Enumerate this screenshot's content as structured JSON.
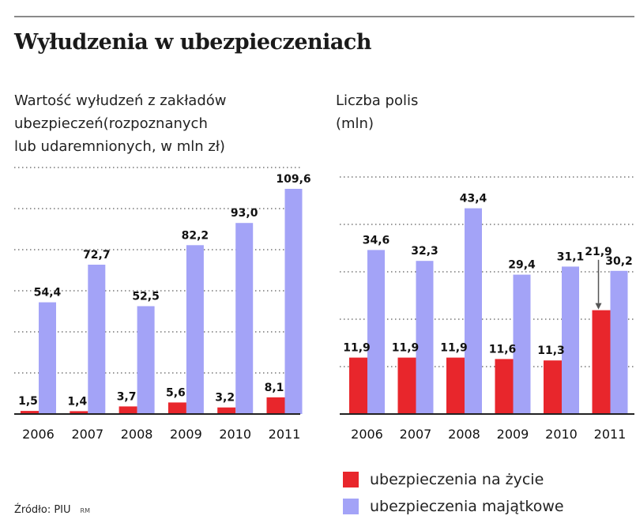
{
  "title": "Wyłudzenia w ubezpieczeniach",
  "colors": {
    "life": "#e8262c",
    "property": "#a3a3f7",
    "grid": "#777777",
    "baseline": "#222222"
  },
  "source": "Źródło: PIU",
  "source_mark": "RM",
  "legend": [
    {
      "label": "ubezpieczenia na życie",
      "color": "#e8262c"
    },
    {
      "label": "ubezpieczenia majątkowe",
      "color": "#a3a3f7"
    }
  ],
  "chart_data": [
    {
      "type": "bar",
      "title": "Wartość wyłudzeń z zakładów ubezpieczeń(rozpoznanych lub udaremnionych, w mln zł)",
      "title_lines": [
        "Wartość wyłudzeń z zakładów",
        "ubezpieczeń(rozpoznanych",
        "lub udaremnionych, w mln zł)"
      ],
      "categories": [
        "2006",
        "2007",
        "2008",
        "2009",
        "2010",
        "2011"
      ],
      "series": [
        {
          "name": "ubezpieczenia na życie",
          "values": [
            1.5,
            1.4,
            3.7,
            5.6,
            3.2,
            8.1
          ],
          "labels": [
            "1,5",
            "1,4",
            "3,7",
            "5,6",
            "3,2",
            "8,1"
          ]
        },
        {
          "name": "ubezpieczenia majątkowe",
          "values": [
            54.4,
            72.7,
            52.5,
            82.2,
            93.0,
            109.6
          ],
          "labels": [
            "54,4",
            "72,7",
            "52,5",
            "82,2",
            "93,0",
            "109,6"
          ]
        }
      ],
      "ylim": [
        0,
        120
      ],
      "grid": true,
      "grid_step": 20
    },
    {
      "type": "bar",
      "title": "Liczba polis (mln)",
      "title_lines": [
        "Liczba polis",
        "(mln)"
      ],
      "categories": [
        "2006",
        "2007",
        "2008",
        "2009",
        "2010",
        "2011"
      ],
      "series": [
        {
          "name": "ubezpieczenia na życie",
          "values": [
            11.9,
            11.9,
            11.9,
            11.6,
            11.3,
            21.9
          ],
          "labels": [
            "11,9",
            "11,9",
            "11,9",
            "11,6",
            "11,3",
            "21,9"
          ]
        },
        {
          "name": "ubezpieczenia majątkowe",
          "values": [
            34.6,
            32.3,
            43.4,
            29.4,
            31.1,
            30.2
          ],
          "labels": [
            "34,6",
            "32,3",
            "43,4",
            "29,4",
            "31,1",
            "30,2"
          ]
        }
      ],
      "ylim": [
        0,
        52
      ],
      "grid": true,
      "grid_step": 10
    }
  ]
}
